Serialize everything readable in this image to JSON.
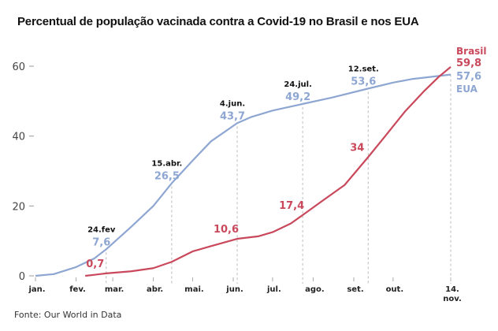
{
  "chart_data": {
    "type": "line",
    "title": "Percentual de população vacinada contra a Covid-19 no Brasil e nos EUA",
    "source": "Fonte: Our World in Data",
    "ylim": [
      0,
      60
    ],
    "yticks": [
      0,
      20,
      40,
      60
    ],
    "xticks": [
      {
        "day": 0,
        "label": "jan."
      },
      {
        "day": 31,
        "label": "fev."
      },
      {
        "day": 59,
        "label": "mar."
      },
      {
        "day": 90,
        "label": "abr."
      },
      {
        "day": 120,
        "label": "mai."
      },
      {
        "day": 151,
        "label": "jun."
      },
      {
        "day": 181,
        "label": "jul."
      },
      {
        "day": 212,
        "label": "ago."
      },
      {
        "day": 243,
        "label": "set."
      },
      {
        "day": 273,
        "label": "out."
      },
      {
        "day": 317,
        "label": "14.",
        "label2": "nov."
      }
    ],
    "series": [
      {
        "name": "EUA",
        "color": "#8ea6d2",
        "points": [
          [
            0,
            0
          ],
          [
            14,
            0.5
          ],
          [
            31,
            2.5
          ],
          [
            45,
            5
          ],
          [
            54,
            7.6
          ],
          [
            73,
            14
          ],
          [
            90,
            20
          ],
          [
            104,
            26.5
          ],
          [
            120,
            33
          ],
          [
            134,
            38.5
          ],
          [
            154,
            43.7
          ],
          [
            165,
            45.5
          ],
          [
            181,
            47.3
          ],
          [
            204,
            49.2
          ],
          [
            226,
            51
          ],
          [
            254,
            53.6
          ],
          [
            273,
            55.3
          ],
          [
            287,
            56.3
          ],
          [
            317,
            57.6
          ]
        ]
      },
      {
        "name": "Brasil",
        "color": "#c9485b",
        "points": [
          [
            38,
            0
          ],
          [
            45,
            0.3
          ],
          [
            54,
            0.7
          ],
          [
            73,
            1.3
          ],
          [
            90,
            2.2
          ],
          [
            104,
            4
          ],
          [
            120,
            7
          ],
          [
            134,
            8.5
          ],
          [
            154,
            10.6
          ],
          [
            170,
            11.3
          ],
          [
            181,
            12.5
          ],
          [
            195,
            15
          ],
          [
            204,
            17.4
          ],
          [
            221,
            22
          ],
          [
            236,
            26
          ],
          [
            254,
            34
          ],
          [
            267,
            40
          ],
          [
            282,
            47
          ],
          [
            297,
            53
          ],
          [
            308,
            57
          ],
          [
            317,
            59.8
          ]
        ]
      }
    ],
    "annotations": [
      {
        "day": 54,
        "date": "24.fev",
        "value": "7,6",
        "series": "EUA"
      },
      {
        "day": 104,
        "date": "15.abr.",
        "value": "26,5",
        "series": "EUA"
      },
      {
        "day": 154,
        "date": "4.jun.",
        "value": "43,7",
        "series": "EUA"
      },
      {
        "day": 204,
        "date": "24.jul.",
        "value": "49,2",
        "series": "EUA"
      },
      {
        "day": 254,
        "date": "12.set.",
        "value": "53,6",
        "series": "EUA"
      },
      {
        "day": 54,
        "value": "0,7",
        "series": "Brasil"
      },
      {
        "day": 154,
        "value": "10,6",
        "series": "Brasil"
      },
      {
        "day": 204,
        "value": "17,4",
        "series": "Brasil"
      },
      {
        "day": 254,
        "value": "34",
        "series": "Brasil"
      }
    ],
    "end_labels": {
      "brasil_name": "Brasil",
      "brasil_value": "59,8",
      "eua_value": "57,6",
      "eua_name": "EUA"
    }
  }
}
